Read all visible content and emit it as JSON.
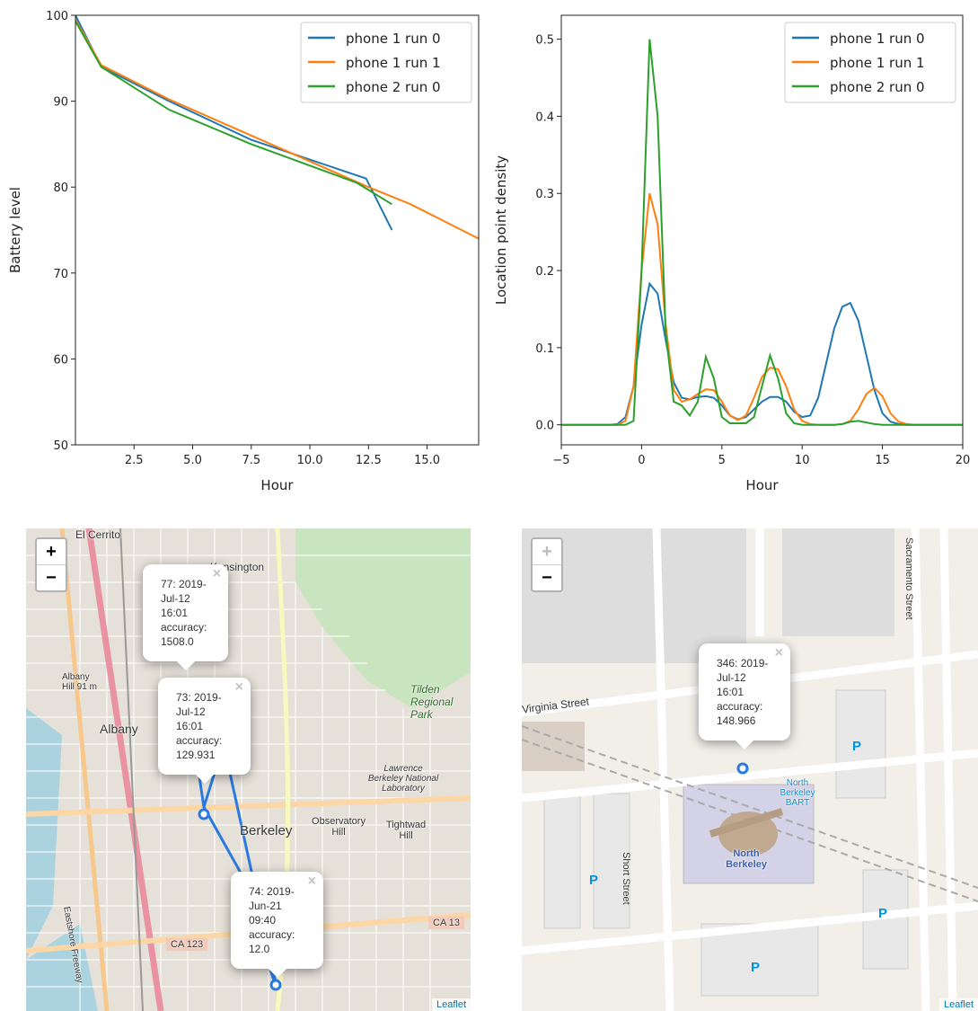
{
  "chart_data": [
    {
      "type": "line",
      "xlabel": "Hour",
      "ylabel": "Battery level",
      "xlim": [
        0,
        17.2
      ],
      "ylim": [
        50,
        100
      ],
      "xticks": [
        2.5,
        {
          "value": 5,
          "label": "5.0"
        },
        7.5,
        {
          "value": 10,
          "label": "10.0"
        },
        12.5,
        {
          "value": 15,
          "label": "15.0"
        }
      ],
      "yticks": [
        50,
        60,
        70,
        80,
        90,
        100
      ],
      "grid": false,
      "legend": "upper right",
      "series": [
        {
          "name": "phone 1 run 0",
          "color": "#1f77b4",
          "x": [
            0,
            1.1,
            4,
            7.5,
            12.4,
            13.5
          ],
          "values": [
            100,
            94,
            90,
            85.5,
            81,
            75
          ]
        },
        {
          "name": "phone 1 run 1",
          "color": "#ff7f0e",
          "x": [
            0,
            1.1,
            4,
            7.5,
            12.5,
            14.3,
            17.2
          ],
          "values": [
            99.5,
            94.2,
            90.2,
            86,
            80,
            78,
            74
          ]
        },
        {
          "name": "phone 2 run 0",
          "color": "#2ca02c",
          "x": [
            0,
            1.1,
            4,
            7.5,
            12,
            13.5
          ],
          "values": [
            99.3,
            94,
            89,
            85,
            80.5,
            78
          ]
        }
      ]
    },
    {
      "type": "line",
      "xlabel": "Hour",
      "ylabel": "Location point density",
      "xlim": [
        -5,
        20
      ],
      "ylim": [
        -0.026,
        0.531
      ],
      "xticks": [
        {
          "value": -5,
          "label": "−5"
        },
        0,
        5,
        10,
        15,
        20
      ],
      "yticks": [
        {
          "value": 0,
          "label": "0.0"
        },
        0.1,
        0.2,
        0.3,
        0.4,
        0.5
      ],
      "grid": false,
      "legend": "upper right",
      "x": [
        -5,
        -4.5,
        -4,
        -3.5,
        -3,
        -2.5,
        -2,
        -1.5,
        -1,
        -0.5,
        0,
        0.5,
        1,
        1.5,
        2,
        2.5,
        3,
        3.5,
        4,
        4.5,
        5,
        5.5,
        6,
        6.5,
        7,
        7.5,
        8,
        8.5,
        9,
        9.5,
        10,
        10.5,
        11,
        11.5,
        12,
        12.5,
        13,
        13.5,
        14,
        14.5,
        15,
        15.5,
        16,
        16.5,
        17,
        17.5,
        18,
        18.5,
        19,
        19.5,
        20
      ],
      "series": [
        {
          "name": "phone 1 run 0",
          "color": "#1f77b4",
          "values": [
            0,
            0,
            0,
            0,
            0,
            0,
            0,
            0.001,
            0.01,
            0.05,
            0.13,
            0.183,
            0.17,
            0.11,
            0.055,
            0.035,
            0.033,
            0.036,
            0.037,
            0.035,
            0.025,
            0.012,
            0.007,
            0.01,
            0.02,
            0.03,
            0.036,
            0.036,
            0.03,
            0.017,
            0.01,
            0.012,
            0.035,
            0.08,
            0.125,
            0.153,
            0.158,
            0.135,
            0.09,
            0.045,
            0.015,
            0.004,
            0.001,
            0,
            0,
            0,
            0,
            0,
            0,
            0,
            0
          ]
        },
        {
          "name": "phone 1 run 1",
          "color": "#ff7f0e",
          "values": [
            0,
            0,
            0,
            0,
            0,
            0,
            0,
            0,
            0.005,
            0.05,
            0.2,
            0.3,
            0.26,
            0.13,
            0.045,
            0.03,
            0.033,
            0.04,
            0.046,
            0.045,
            0.03,
            0.012,
            0.006,
            0.012,
            0.035,
            0.062,
            0.074,
            0.072,
            0.05,
            0.02,
            0.005,
            0.001,
            0,
            0,
            0,
            0.001,
            0.005,
            0.02,
            0.04,
            0.048,
            0.037,
            0.015,
            0.004,
            0.001,
            0,
            0,
            0,
            0,
            0,
            0,
            0
          ]
        },
        {
          "name": "phone 2 run 0",
          "color": "#2ca02c",
          "values": [
            0,
            0,
            0,
            0,
            0,
            0,
            0,
            0,
            0,
            0.005,
            0.2,
            0.5,
            0.4,
            0.12,
            0.03,
            0.025,
            0.012,
            0.03,
            0.088,
            0.06,
            0.01,
            0.002,
            0.002,
            0.002,
            0.01,
            0.05,
            0.09,
            0.06,
            0.015,
            0.002,
            0,
            0,
            0,
            0,
            0,
            0.001,
            0.004,
            0.005,
            0.003,
            0.001,
            0,
            0,
            0,
            0,
            0,
            0,
            0,
            0,
            0,
            0,
            0
          ]
        }
      ]
    }
  ],
  "maps": [
    {
      "zoom_in": "+",
      "zoom_out": "−",
      "attribution": "Leaflet",
      "close": "×",
      "places": [
        "El Cerrito",
        "Kensington",
        "Albany",
        "Berkeley",
        "Observatory Hill",
        "Tightwad Hill",
        "Tilden Regional Park",
        "Lawrence Berkeley National Laboratory",
        "CA 123",
        "CA 13",
        "Albany Hill 91 m",
        "Eastshore Freeway"
      ],
      "popups": [
        "77: 2019-Jul-12 16:01 accuracy: 1508.0",
        "73: 2019-Jul-12 16:01 accuracy: 129.931",
        "74: 2019-Jun-21 09:40 accuracy: 12.0"
      ]
    },
    {
      "zoom_in": "+",
      "zoom_out": "−",
      "attribution": "Leaflet",
      "close": "×",
      "places": [
        "Virginia Street",
        "Short Street",
        "Sacramento Street",
        "North Berkeley",
        "North Berkeley BART",
        "P"
      ],
      "popups": [
        "346: 2019-Jul-12 16:01 accuracy: 148.966"
      ]
    }
  ]
}
